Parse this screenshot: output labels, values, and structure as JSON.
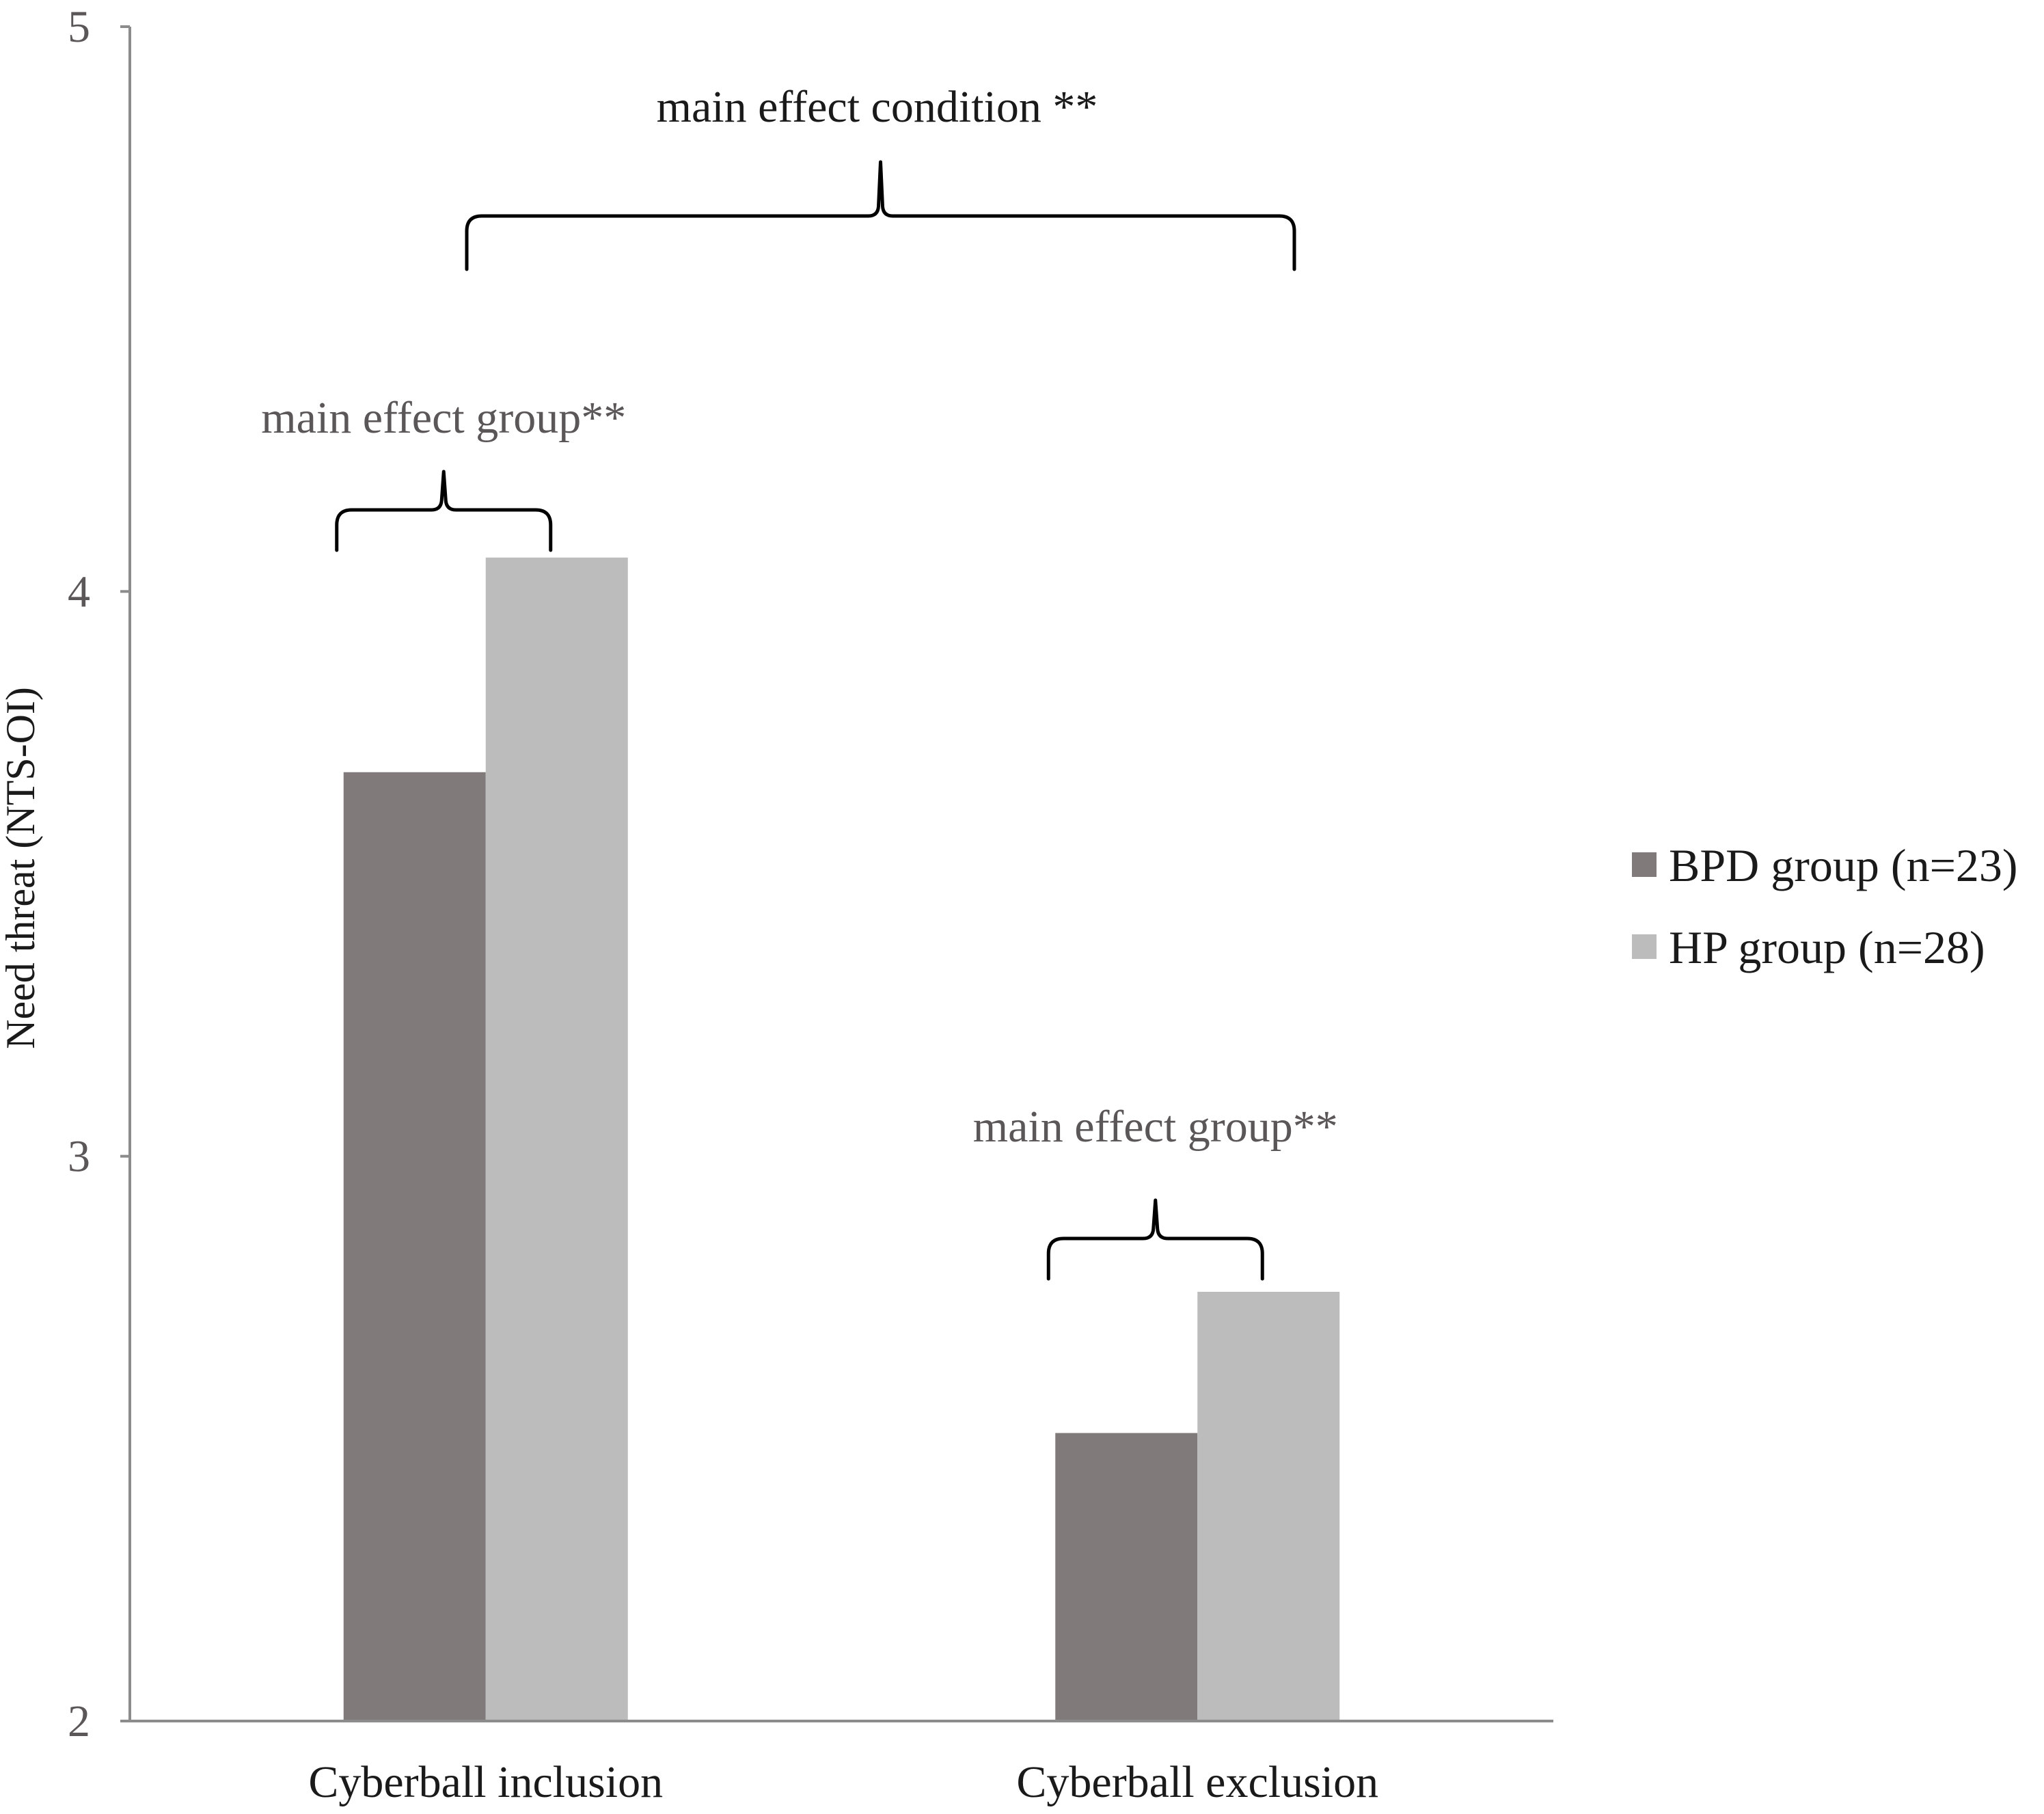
{
  "chart_data": {
    "type": "bar",
    "title": "",
    "xlabel": "",
    "ylabel": "Need threat (NTS-OI)",
    "ylim": [
      2,
      5
    ],
    "yticks": [
      2,
      3,
      4,
      5
    ],
    "grid": false,
    "legend_position": "right",
    "categories": [
      "Cyberball inclusion",
      "Cyberball exclusion"
    ],
    "series": [
      {
        "name": "BPD group (n=23)",
        "color": "#807a7b",
        "values": [
          3.68,
          2.51
        ]
      },
      {
        "name": "HP group (n=28)",
        "color": "#bdbcbd",
        "values": [
          4.06,
          2.76
        ]
      }
    ],
    "annotations": {
      "condition": "main effect condition **",
      "group_inclusion": "main effect group**",
      "group_exclusion": "main effect group**"
    }
  }
}
